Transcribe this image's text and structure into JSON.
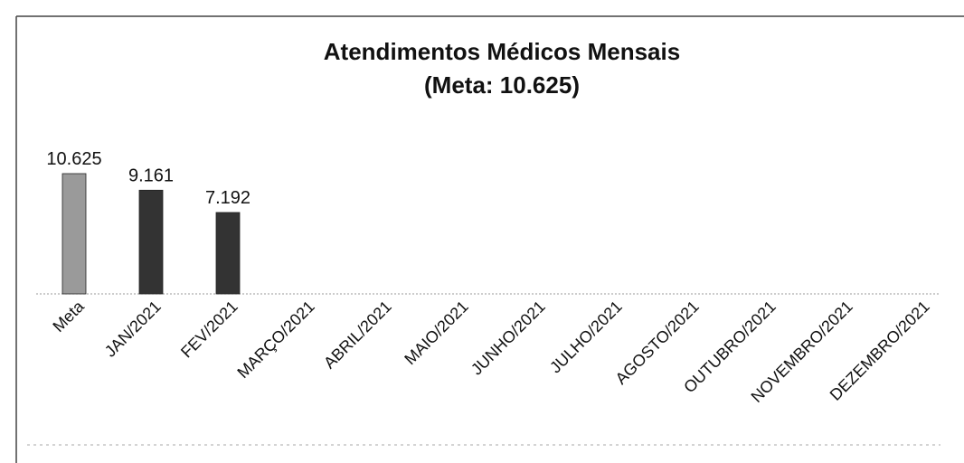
{
  "chart_data": {
    "type": "bar",
    "title": "Atendimentos Médicos Mensais",
    "subtitle": "(Meta: 10.625)",
    "categories": [
      "Meta",
      "JAN/2021",
      "FEV/2021",
      "MARÇO/2021",
      "ABRIL/2021",
      "MAIO/2021",
      "JUNHO/2021",
      "JULHO/2021",
      "AGOSTO/2021",
      "OUTUBRO/2021",
      "NOVEMBRO/2021",
      "DEZEMBRO/2021"
    ],
    "values": [
      10625,
      9161,
      7192,
      null,
      null,
      null,
      null,
      null,
      null,
      null,
      null,
      null
    ],
    "value_labels": [
      "10.625",
      "9.161",
      "7.192",
      null,
      null,
      null,
      null,
      null,
      null,
      null,
      null,
      null
    ],
    "colors": [
      "#9a9a9a",
      "#333333",
      "#333333",
      "#333333",
      "#333333",
      "#333333",
      "#333333",
      "#333333",
      "#333333",
      "#333333",
      "#333333",
      "#333333"
    ]
  }
}
